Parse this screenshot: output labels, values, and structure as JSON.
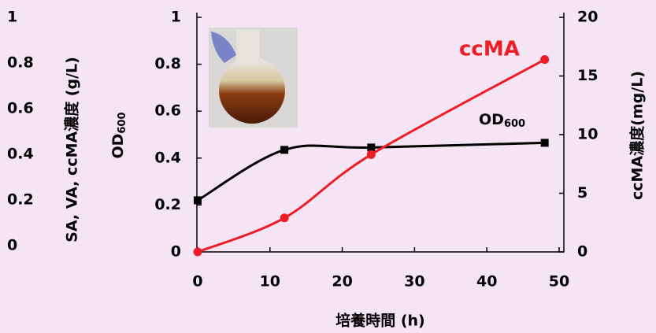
{
  "chart_data": {
    "type": "line",
    "x_label": "培養時間 (h)",
    "y_label": {
      "text": "OD",
      "subscript": "600"
    },
    "y2_label": "ccMA濃度(mg/L)",
    "y3_label": "SA, VA, ccMA濃度 (g/L)",
    "x": [
      0,
      12,
      24,
      48
    ],
    "series": [
      {
        "name": {
          "text": "OD",
          "subscript": "600"
        },
        "color": "#000000",
        "marker": "square",
        "values": [
          0.22,
          0.435,
          0.445,
          0.465
        ]
      },
      {
        "name": "ccMA",
        "color": "#ee1c25",
        "marker": "circle",
        "axis": "y2",
        "values": [
          0,
          2.9,
          8.3,
          16.4
        ]
      }
    ],
    "xlim": [
      0,
      50
    ],
    "xticks": [
      0,
      10,
      20,
      30,
      40,
      50
    ],
    "ylim": [
      0,
      1
    ],
    "yticks": [
      0,
      0.2,
      0.4,
      0.6,
      0.8,
      1
    ],
    "y2lim": [
      0,
      20
    ],
    "y2ticks": [
      0,
      5,
      10,
      15,
      20
    ],
    "y3lim": [
      0,
      1
    ],
    "y3ticks": [
      0,
      0.2,
      0.4,
      0.6,
      0.8,
      1
    ]
  }
}
